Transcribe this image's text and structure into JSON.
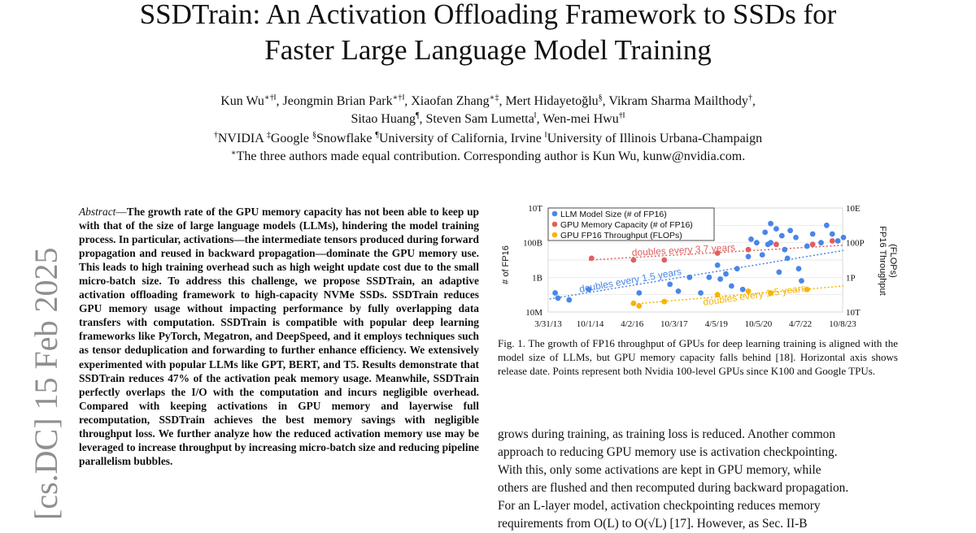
{
  "paper": {
    "title_line1": "SSDTrain: An Activation Offloading Framework to SSDs for",
    "title_line2": "Faster Large Language Model Training",
    "authors": [
      {
        "name": "Kun Wu",
        "sup": "∗†‖"
      },
      {
        "name": "Jeongmin Brian Park",
        "sup": "∗†‖"
      },
      {
        "name": "Xiaofan Zhang",
        "sup": "∗‡"
      },
      {
        "name": "Mert Hidayetoğlu",
        "sup": "§"
      },
      {
        "name": "Vikram Sharma Mailthody",
        "sup": "†"
      },
      {
        "name": "Sitao Huang",
        "sup": "¶"
      },
      {
        "name": "Steven Sam Lumetta",
        "sup": "‖"
      },
      {
        "name": "Wen-mei Hwu",
        "sup": "†‖"
      }
    ],
    "affiliations": [
      {
        "sup": "†",
        "name": "NVIDIA"
      },
      {
        "sup": "‡",
        "name": "Google"
      },
      {
        "sup": "§",
        "name": "Snowflake"
      },
      {
        "sup": "¶",
        "name": "University of California, Irvine"
      },
      {
        "sup": "‖",
        "name": "University of Illinois Urbana-Champaign"
      }
    ],
    "equal_note_sup": "∗",
    "equal_note": "The three authors made equal contribution. Corresponding author is Kun Wu, kunw@nvidia.com.",
    "arxiv_stamp": "[cs.DC]  15 Feb 2025",
    "abstract_label": "Abstract",
    "abstract_dash": "—",
    "abstract_text": "The growth rate of the GPU memory capacity has not been able to keep up with that of the size of large language models (LLMs), hindering the model training process. In particular, activations—the intermediate tensors produced during forward propagation and reused in backward propagation—dominate the GPU memory use. This leads to high training overhead such as high weight update cost due to the small micro-batch size. To address this challenge, we propose SSDTrain, an adaptive activation offloading framework to high-capacity NVMe SSDs. SSDTrain reduces GPU memory usage without impacting performance by fully overlapping data transfers with computation. SSDTrain is compatible with popular deep learning frameworks like PyTorch, Megatron, and DeepSpeed, and it employs techniques such as tensor deduplication and forwarding to further enhance efficiency. We extensively experimented with popular LLMs like GPT, BERT, and T5. Results demonstrate that SSDTrain reduces 47% of the activation peak memory usage. Meanwhile, SSDTrain perfectly overlaps the I/O with the computation and incurs negligible overhead. Compared with keeping activations in GPU memory and layerwise full recomputation, SSDTrain achieves the best memory savings with negligible throughput loss. We further analyze how the reduced activation memory use may be leveraged to increase throughput by increasing micro-batch size and reducing pipeline parallelism bubbles.",
    "figure_caption": "Fig. 1.   The growth of FP16 throughput of GPUs for deep learning training is aligned with the model size of LLMs, but GPU memory capacity falls behind [18]. Horizontal axis shows release date. Points represent both Nvidia 100-level GPUs since K100 and Google TPUs.",
    "body_lines": [
      "grows during training, as training loss is reduced. Another common",
      "approach to reducing GPU memory use is activation checkpointing.",
      "With this, only some activations are kept in GPU memory, while",
      "others are flushed and then recomputed during backward propagation.",
      "For an L-layer model, activation checkpointing reduces memory",
      "requirements from O(L) to O(√L) [17]. However, as Sec. II-B"
    ]
  },
  "chart_data": {
    "type": "scatter",
    "xlabel": "",
    "ylabel": "# of FP16",
    "ylabel_right": "FP16 Throughput (FLOPs)",
    "x_ticks": [
      "3/31/13",
      "10/1/14",
      "4/2/16",
      "10/3/17",
      "4/5/19",
      "10/5/20",
      "4/7/22",
      "10/8/23"
    ],
    "y_ticks_left": [
      "10T",
      "100B",
      "1B",
      "10M"
    ],
    "y_ticks_right": [
      "10E",
      "100P",
      "1P",
      "10T"
    ],
    "x_range": [
      "2013-03-31",
      "2023-10-08"
    ],
    "y_range_log10": [
      7,
      13
    ],
    "legend": [
      "LLM Model Size (# of FP16)",
      "GPU Memory Capacity (# of FP16)",
      "GPU FP16 Throughput (FLOPs)"
    ],
    "legend_position": "top-left",
    "colors": {
      "llm": "#4a86e8",
      "memory": "#e06060",
      "throughput": "#f6b400"
    },
    "annotations": {
      "memory": "doubles every 3.7 years",
      "llm": "doubles every 1.5 years",
      "throughput": "doubles every 1.5 years"
    },
    "series": [
      {
        "name": "LLM Model Size (# of FP16)",
        "key": "llm",
        "points": [
          [
            2013.5,
            8.1
          ],
          [
            2013.6,
            7.8
          ],
          [
            2014.0,
            7.7
          ],
          [
            2014.7,
            8.3
          ],
          [
            2016.5,
            8.1
          ],
          [
            2017.6,
            8.6
          ],
          [
            2017.9,
            8.2
          ],
          [
            2018.3,
            9.0
          ],
          [
            2018.7,
            8.1
          ],
          [
            2019.0,
            9.0
          ],
          [
            2019.3,
            9.7
          ],
          [
            2019.4,
            8.9
          ],
          [
            2019.6,
            9.2
          ],
          [
            2019.8,
            8.5
          ],
          [
            2020.0,
            9.5
          ],
          [
            2020.2,
            8.3
          ],
          [
            2020.5,
            11.2
          ],
          [
            2020.7,
            11.0
          ],
          [
            2020.9,
            10.3
          ],
          [
            2021.0,
            11.6
          ],
          [
            2021.1,
            10.9
          ],
          [
            2021.2,
            12.1
          ],
          [
            2021.4,
            11.8
          ],
          [
            2021.6,
            11.4
          ],
          [
            2021.7,
            10.6
          ],
          [
            2021.8,
            10.1
          ],
          [
            2021.9,
            11.7
          ],
          [
            2022.1,
            11.3
          ],
          [
            2022.3,
            8.8
          ],
          [
            2022.5,
            10.8
          ],
          [
            2022.7,
            11.5
          ],
          [
            2023.0,
            11.0
          ],
          [
            2023.2,
            12.0
          ],
          [
            2023.4,
            11.5
          ],
          [
            2023.6,
            11.1
          ],
          [
            2023.8,
            11.3
          ],
          [
            2021.2,
            11.0
          ],
          [
            2020.4,
            10.2
          ],
          [
            2021.5,
            9.3
          ],
          [
            2022.2,
            9.5
          ]
        ]
      },
      {
        "name": "GPU Memory Capacity (# of FP16)",
        "key": "memory",
        "points": [
          [
            2014.8,
            10.1
          ],
          [
            2016.3,
            10.0
          ],
          [
            2017.4,
            10.0
          ],
          [
            2019.3,
            10.4
          ],
          [
            2020.4,
            10.6
          ],
          [
            2021.4,
            10.9
          ],
          [
            2022.7,
            10.9
          ],
          [
            2023.4,
            11.1
          ]
        ]
      },
      {
        "name": "GPU FP16 Throughput (FLOPs)",
        "key": "throughput",
        "points": [
          [
            2016.3,
            7.5
          ],
          [
            2016.5,
            7.35
          ],
          [
            2017.4,
            7.6
          ],
          [
            2019.3,
            8.0
          ],
          [
            2020.4,
            8.2
          ],
          [
            2021.2,
            8.1
          ],
          [
            2022.5,
            8.3
          ]
        ]
      }
    ]
  }
}
